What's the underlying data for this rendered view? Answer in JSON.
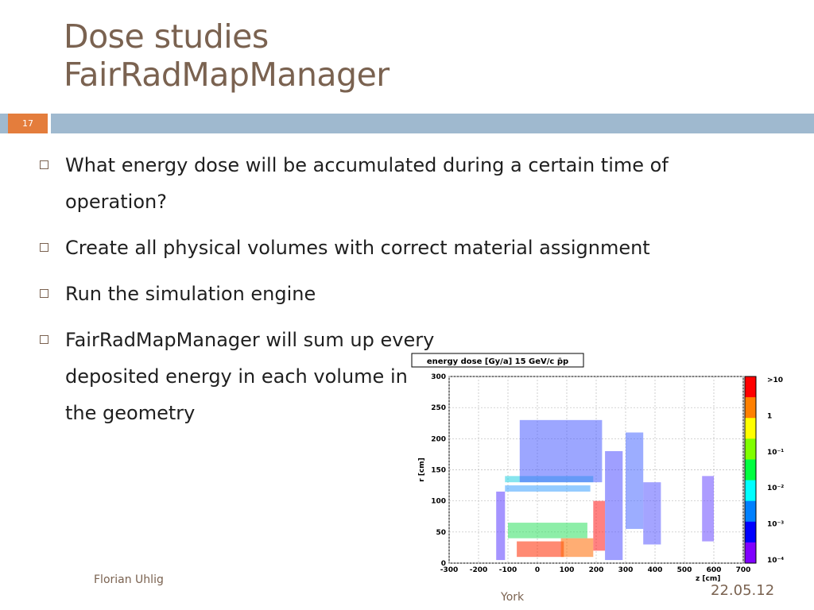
{
  "slide": {
    "title_line1": "Dose studies",
    "title_line2": "FairRadMapManager",
    "number": "17"
  },
  "bullets": [
    "What energy dose will be accumulated during a certain time of operation?",
    "Create all physical volumes with correct material assignment",
    "Run the simulation engine",
    "FairRadMapManager will sum up every deposited energy in each volume in the geometry"
  ],
  "footer": {
    "author": "Florian Uhlig",
    "location": "York",
    "date": "22.05.12"
  },
  "colors": {
    "title": "#7a6250",
    "bar": "#9fb9cf",
    "number_box": "#e47d3c"
  },
  "chart_data": {
    "type": "heatmap",
    "title": "energy dose [Gy/a] 15 GeV/c p̄p",
    "xlabel": "z [cm]",
    "ylabel": "r [cm]",
    "xlim": [
      -300,
      700
    ],
    "ylim": [
      0,
      300
    ],
    "xticks": [
      "-300",
      "-200",
      "-100",
      "0",
      "100",
      "200",
      "300",
      "400",
      "500",
      "600",
      "700"
    ],
    "yticks": [
      "0",
      "50",
      "100",
      "150",
      "200",
      "250",
      "300"
    ],
    "colorbar_labels": [
      ">10",
      "1",
      "10⁻¹",
      "10⁻²",
      "10⁻³",
      "10⁻⁴"
    ],
    "colorbar_colors": [
      "#ff0000",
      "#ff8000",
      "#ffff00",
      "#80ff00",
      "#00ff40",
      "#00ffff",
      "#0080ff",
      "#0000ff",
      "#8000ff"
    ],
    "grid": true
  }
}
